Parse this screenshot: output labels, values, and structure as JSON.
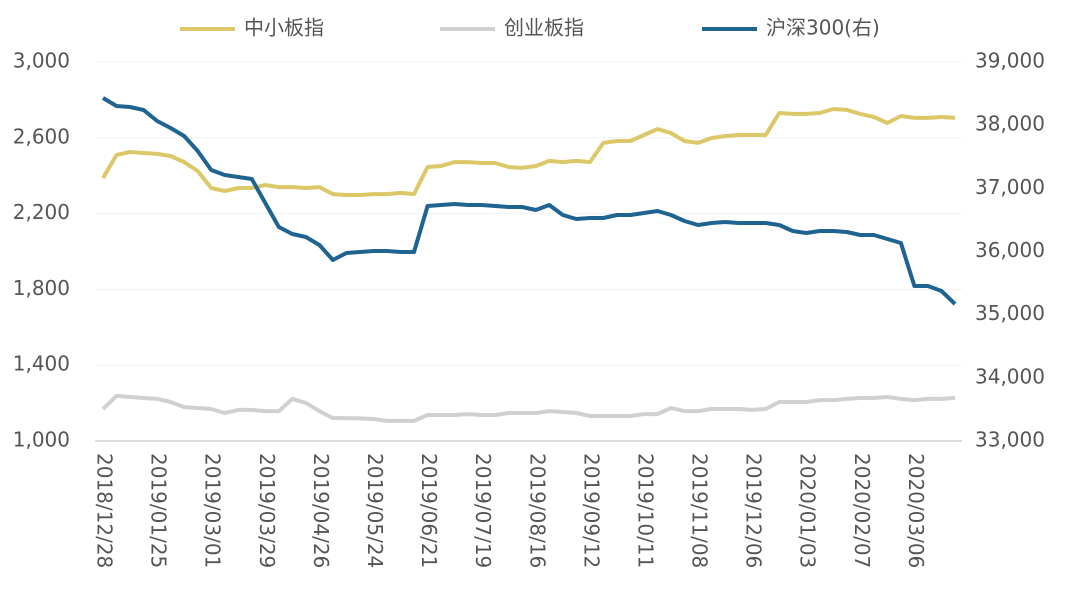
{
  "chart_data": {
    "type": "line",
    "categories": [
      "2018/12/28",
      null,
      null,
      null,
      "2019/01/25",
      null,
      null,
      null,
      "2019/03/01",
      null,
      null,
      null,
      "2019/03/29",
      null,
      null,
      null,
      "2019/04/26",
      null,
      null,
      null,
      "2019/05/24",
      null,
      null,
      null,
      "2019/06/21",
      null,
      null,
      null,
      "2019/07/19",
      null,
      null,
      null,
      "2019/08/16",
      null,
      null,
      null,
      "2019/09/12",
      null,
      null,
      null,
      "2019/10/11",
      null,
      null,
      null,
      "2019/11/08",
      null,
      null,
      null,
      "2019/12/06",
      null,
      null,
      null,
      "2020/01/03",
      null,
      null,
      null,
      "2020/02/07",
      null,
      null,
      null,
      "2020/03/06",
      null,
      null,
      null
    ],
    "series": [
      {
        "name": "中小板指",
        "color": "#dcc868",
        "values": [
          2388,
          2509,
          2525,
          2520,
          2515,
          2504,
          2472,
          2425,
          2335,
          2319,
          2335,
          2335,
          2351,
          2340,
          2340,
          2335,
          2340,
          2303,
          2298,
          2298,
          2303,
          2303,
          2309,
          2303,
          2446,
          2451,
          2472,
          2472,
          2467,
          2467,
          2446,
          2441,
          2451,
          2478,
          2472,
          2478,
          2472,
          2573,
          2583,
          2583,
          2615,
          2646,
          2625,
          2583,
          2573,
          2599,
          2609,
          2615,
          2615,
          2615,
          2731,
          2726,
          2726,
          2731,
          2752,
          2747,
          2726,
          2710,
          2678,
          2715,
          2705,
          2705,
          2710,
          2705
        ]
      },
      {
        "name": "创业板指",
        "color": "#d0d0d0",
        "values": [
          1169,
          1238,
          1232,
          1227,
          1222,
          1206,
          1179,
          1174,
          1169,
          1148,
          1164,
          1164,
          1158,
          1158,
          1222,
          1201,
          1158,
          1121,
          1121,
          1119,
          1116,
          1106,
          1106,
          1106,
          1137,
          1137,
          1137,
          1142,
          1137,
          1137,
          1148,
          1148,
          1148,
          1158,
          1153,
          1148,
          1132,
          1132,
          1132,
          1132,
          1142,
          1142,
          1174,
          1158,
          1158,
          1169,
          1169,
          1169,
          1164,
          1169,
          1206,
          1206,
          1206,
          1216,
          1216,
          1222,
          1227,
          1227,
          1232,
          1222,
          1216,
          1222,
          1222,
          1227
        ]
      },
      {
        "name": "沪深300(右)",
        "color": "#1f6391",
        "axis": "y2",
        "values": [
          38430,
          38303,
          38288,
          38240,
          38066,
          37955,
          37828,
          37591,
          37290,
          37211,
          37179,
          37148,
          36768,
          36388,
          36277,
          36230,
          36103,
          35865,
          35976,
          35992,
          36008,
          36008,
          35992,
          35992,
          36720,
          36736,
          36752,
          36736,
          36736,
          36720,
          36704,
          36704,
          36657,
          36736,
          36578,
          36515,
          36530,
          36530,
          36578,
          36578,
          36610,
          36641,
          36578,
          36483,
          36420,
          36451,
          36467,
          36451,
          36451,
          36451,
          36420,
          36325,
          36293,
          36325,
          36325,
          36309,
          36261,
          36261,
          36198,
          36135,
          35454,
          35454,
          35375,
          35169
        ]
      }
    ],
    "ylim": [
      1000,
      3000
    ],
    "yticks": [
      {
        "value": 1000,
        "label": "1,000"
      },
      {
        "value": 1400,
        "label": "1,400"
      },
      {
        "value": 1800,
        "label": "1,800"
      },
      {
        "value": 2200,
        "label": "2,200"
      },
      {
        "value": 2600,
        "label": "2,600"
      },
      {
        "value": 3000,
        "label": "3,000"
      }
    ],
    "y2lim": [
      33000,
      39000
    ],
    "y2ticks": [
      {
        "value": 33000,
        "label": "33,000"
      },
      {
        "value": 34000,
        "label": "34,000"
      },
      {
        "value": 35000,
        "label": "35,000"
      },
      {
        "value": 36000,
        "label": "36,000"
      },
      {
        "value": 37000,
        "label": "37,000"
      },
      {
        "value": 38000,
        "label": "38,000"
      },
      {
        "value": 39000,
        "label": "39,000"
      }
    ],
    "grid": true,
    "legend": "top"
  }
}
